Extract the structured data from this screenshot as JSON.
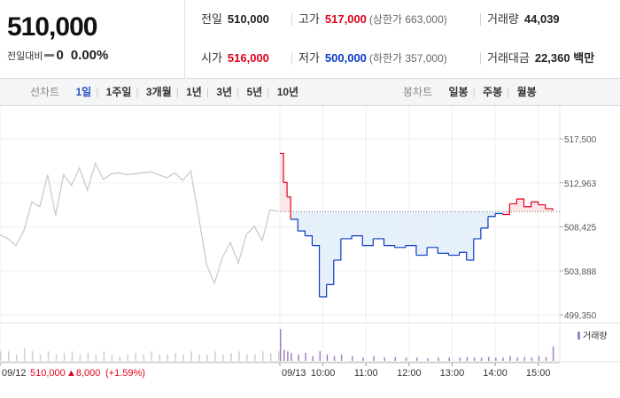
{
  "header": {
    "price": "510,000",
    "change_label": "전일대비",
    "change_value": "0",
    "change_pct": "0.00%",
    "stats": {
      "prev_close": {
        "label": "전일",
        "value": "510,000"
      },
      "high": {
        "label": "고가",
        "value": "517,000",
        "extra": "(상한가 663,000)"
      },
      "volume": {
        "label": "거래량",
        "value": "44,039"
      },
      "open": {
        "label": "시가",
        "value": "516,000"
      },
      "low": {
        "label": "저가",
        "value": "500,000",
        "extra": "(하한가 357,000)"
      },
      "trade_value": {
        "label": "거래대금",
        "value": "22,360",
        "unit": "백만"
      }
    }
  },
  "toolbar": {
    "line_title": "선차트",
    "line_options": [
      "1일",
      "1주일",
      "3개월",
      "1년",
      "3년",
      "5년",
      "10년"
    ],
    "line_active": 0,
    "candle_title": "봉차트",
    "candle_options": [
      "일봉",
      "주봉",
      "월봉"
    ]
  },
  "prev_info": {
    "date": "09/12",
    "price": "510,000",
    "change": "▲8,000",
    "pct": "(+1.59%)"
  },
  "volume_legend": "거래량",
  "colors": {
    "up": "#e0001b",
    "down": "#0b3cc2",
    "prev_line": "#c8c8c8",
    "up_fill": "#fbe3e6",
    "down_fill": "#e3eef9"
  },
  "chart_data": {
    "type": "line",
    "title": "",
    "xlabel": "",
    "ylabel": "",
    "y_ticks": [
      "517,500",
      "512,963",
      "508,425",
      "503,888",
      "499,350"
    ],
    "x_ticks": [
      "09/12",
      "09/13",
      "10:00",
      "11:00",
      "12:00",
      "13:00",
      "14:00",
      "15:00"
    ],
    "ylim": [
      499350,
      517500
    ],
    "baseline": 510000,
    "previous_day": {
      "date": "09/12",
      "prices": [
        507600,
        507200,
        506500,
        508000,
        511000,
        510500,
        513800,
        509600,
        513800,
        512700,
        514500,
        512200,
        515000,
        513300,
        513900,
        514000,
        513800,
        513900,
        514000,
        514100,
        513800,
        513500,
        514000,
        513200,
        514200,
        509500,
        504500,
        502600,
        505300,
        506800,
        504700,
        507600,
        508500,
        507000,
        510200,
        510000
      ]
    },
    "today": {
      "date": "09/13",
      "times": [
        "09:00",
        "09:05",
        "09:10",
        "09:15",
        "09:25",
        "09:35",
        "09:45",
        "09:55",
        "10:05",
        "10:15",
        "10:25",
        "10:40",
        "10:55",
        "11:10",
        "11:25",
        "11:40",
        "11:55",
        "12:10",
        "12:25",
        "12:40",
        "12:55",
        "13:10",
        "13:20",
        "13:30",
        "13:40",
        "13:50",
        "14:00",
        "14:10",
        "14:20",
        "14:30",
        "14:40",
        "14:50",
        "15:00",
        "15:10",
        "15:20"
      ],
      "prices": [
        516000,
        513000,
        511500,
        509200,
        508000,
        507500,
        506500,
        501200,
        502500,
        505000,
        507200,
        507500,
        506500,
        507200,
        506500,
        506300,
        506500,
        505500,
        506300,
        505700,
        505500,
        505800,
        505000,
        507200,
        508300,
        509500,
        509800,
        509700,
        510800,
        511300,
        510500,
        511000,
        510700,
        510300,
        510100
      ]
    },
    "volume": {
      "legend": "거래량",
      "prev_day": [
        0.3,
        0.3,
        0.2,
        0.4,
        0.3,
        0.2,
        0.3,
        0.2,
        0.25,
        0.3,
        0.2,
        0.25,
        0.2,
        0.3,
        0.2,
        0.15,
        0.2,
        0.25,
        0.2,
        0.3,
        0.2,
        0.2,
        0.25,
        0.2,
        0.3,
        0.2,
        0.2,
        0.3,
        0.2,
        0.25,
        0.3,
        0.2,
        0.2,
        0.3,
        0.25,
        0.3
      ],
      "today": [
        1.0,
        0.35,
        0.3,
        0.25,
        0.2,
        0.25,
        0.15,
        0.3,
        0.2,
        0.15,
        0.2,
        0.15,
        0.1,
        0.15,
        0.1,
        0.12,
        0.1,
        0.1,
        0.08,
        0.1,
        0.1,
        0.1,
        0.12,
        0.1,
        0.1,
        0.12,
        0.1,
        0.1,
        0.15,
        0.1,
        0.12,
        0.1,
        0.15,
        0.12,
        0.45
      ]
    }
  }
}
